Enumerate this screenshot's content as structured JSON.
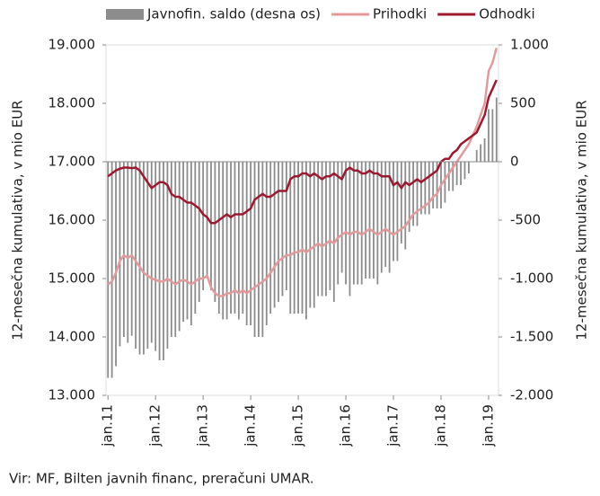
{
  "chart_data": {
    "type": "combo",
    "source": "Vir: MF, Bilten javnih financ, preračuni UMAR.",
    "y_label": "12-mesečna kumulativa, v mio EUR",
    "y2_label": "12-mesečna kumulativa, v mio EUR",
    "categories": [
      "jan.11",
      null,
      null,
      null,
      null,
      null,
      null,
      null,
      null,
      null,
      null,
      null,
      "jan.12",
      null,
      null,
      null,
      null,
      null,
      null,
      null,
      null,
      null,
      null,
      null,
      "jan.13",
      null,
      null,
      null,
      null,
      null,
      null,
      null,
      null,
      null,
      null,
      null,
      "jan.14",
      null,
      null,
      null,
      null,
      null,
      null,
      null,
      null,
      null,
      null,
      null,
      "jan.15",
      null,
      null,
      null,
      null,
      null,
      null,
      null,
      null,
      null,
      null,
      null,
      "jan.16",
      null,
      null,
      null,
      null,
      null,
      null,
      null,
      null,
      null,
      null,
      null,
      "jan.17",
      null,
      null,
      null,
      null,
      null,
      null,
      null,
      null,
      null,
      null,
      null,
      "jan.18",
      null,
      null,
      null,
      null,
      null,
      null,
      null,
      null,
      null,
      null,
      null,
      "jan.19",
      null,
      null
    ],
    "ylim": [
      13000,
      19000
    ],
    "yticks": [
      {
        "value": 13000,
        "label": "13.000"
      },
      {
        "value": 14000,
        "label": "14.000"
      },
      {
        "value": 15000,
        "label": "15.000"
      },
      {
        "value": 16000,
        "label": "16.000"
      },
      {
        "value": 17000,
        "label": "17.000"
      },
      {
        "value": 18000,
        "label": "18.000"
      },
      {
        "value": 19000,
        "label": "19.000"
      }
    ],
    "y2lim": [
      -2000,
      1000
    ],
    "y2ticks": [
      {
        "value": -2000,
        "label": "-2.000"
      },
      {
        "value": -1500,
        "label": "-1.500"
      },
      {
        "value": -1000,
        "label": "-1.000"
      },
      -500,
      0,
      500,
      {
        "value": 1000,
        "label": "1.000"
      }
    ],
    "series": [
      {
        "name": "Javnofin. saldo (desna os)",
        "type": "bar",
        "axis": "y2",
        "color": "#8c8c8c",
        "values": [
          -1850,
          -1850,
          -1750,
          -1580,
          -1500,
          -1550,
          -1490,
          -1600,
          -1650,
          -1650,
          -1600,
          -1550,
          -1620,
          -1700,
          -1700,
          -1600,
          -1500,
          -1500,
          -1450,
          -1370,
          -1350,
          -1400,
          -1300,
          -1200,
          -1100,
          -1000,
          -1100,
          -1200,
          -1300,
          -1350,
          -1350,
          -1300,
          -1300,
          -1350,
          -1300,
          -1400,
          -1400,
          -1500,
          -1500,
          -1500,
          -1400,
          -1300,
          -1250,
          -1200,
          -1150,
          -1100,
          -1300,
          -1300,
          -1300,
          -1300,
          -1350,
          -1250,
          -1250,
          -1150,
          -1150,
          -1150,
          -1100,
          -1200,
          -1050,
          -950,
          -1050,
          -1150,
          -1050,
          -1050,
          -1050,
          -1000,
          -1000,
          -1000,
          -1050,
          -950,
          -900,
          -950,
          -850,
          -850,
          -700,
          -750,
          -600,
          -550,
          -550,
          -450,
          -450,
          -450,
          -400,
          -400,
          -400,
          -350,
          -250,
          -250,
          -200,
          -200,
          -150,
          -100,
          0,
          100,
          150,
          200,
          450,
          450,
          550
        ]
      },
      {
        "name": "Prihodki",
        "type": "line",
        "color": "#e39a9a",
        "values": [
          14900,
          14950,
          15100,
          15300,
          15400,
          15350,
          15400,
          15300,
          15200,
          15100,
          15050,
          15000,
          14980,
          14950,
          14950,
          15000,
          14950,
          14900,
          14950,
          14980,
          14950,
          14900,
          14950,
          15000,
          15000,
          15050,
          14850,
          14750,
          14700,
          14700,
          14750,
          14750,
          14800,
          14750,
          14800,
          14750,
          14800,
          14850,
          14900,
          14950,
          15000,
          15100,
          15200,
          15300,
          15350,
          15400,
          15400,
          15450,
          15450,
          15500,
          15450,
          15500,
          15550,
          15600,
          15550,
          15600,
          15650,
          15600,
          15700,
          15750,
          15800,
          15750,
          15800,
          15800,
          15750,
          15800,
          15850,
          15800,
          15750,
          15800,
          15850,
          15800,
          15750,
          15800,
          15850,
          15900,
          16000,
          16100,
          16150,
          16200,
          16250,
          16300,
          16400,
          16450,
          16600,
          16700,
          16800,
          16900,
          17000,
          17100,
          17200,
          17300,
          17450,
          17600,
          17800,
          18000,
          18550,
          18700,
          18950
        ]
      },
      {
        "name": "Odhodki",
        "type": "line",
        "color": "#9b1a30",
        "values": [
          16750,
          16800,
          16850,
          16880,
          16900,
          16900,
          16890,
          16900,
          16850,
          16750,
          16650,
          16550,
          16600,
          16650,
          16650,
          16600,
          16450,
          16400,
          16400,
          16350,
          16300,
          16300,
          16250,
          16200,
          16100,
          16050,
          15950,
          15950,
          16000,
          16050,
          16100,
          16050,
          16100,
          16100,
          16100,
          16150,
          16200,
          16350,
          16400,
          16450,
          16400,
          16400,
          16450,
          16500,
          16500,
          16500,
          16700,
          16750,
          16750,
          16800,
          16800,
          16750,
          16800,
          16750,
          16700,
          16750,
          16750,
          16800,
          16750,
          16700,
          16850,
          16900,
          16850,
          16850,
          16800,
          16800,
          16850,
          16800,
          16800,
          16750,
          16750,
          16750,
          16600,
          16650,
          16550,
          16650,
          16600,
          16650,
          16700,
          16650,
          16700,
          16750,
          16800,
          16850,
          17000,
          17050,
          17050,
          17150,
          17200,
          17300,
          17350,
          17400,
          17450,
          17500,
          17650,
          17800,
          18100,
          18250,
          18400
        ]
      }
    ]
  }
}
